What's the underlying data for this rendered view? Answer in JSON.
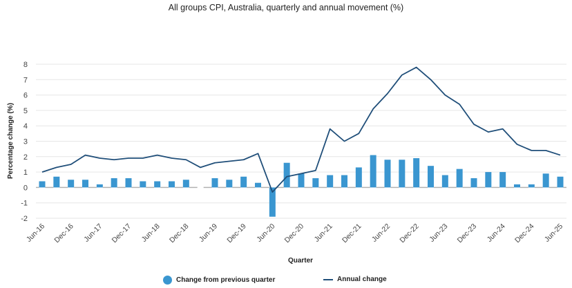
{
  "chart_data": {
    "type": "bar",
    "title": "All groups CPI, Australia, quarterly and annual movement (%)",
    "xlabel": "Quarter",
    "ylabel": "Percentage change (%)",
    "ylim": [
      -2,
      8
    ],
    "yticks": [
      -2,
      -1,
      0,
      1,
      2,
      3,
      4,
      5,
      6,
      7,
      8
    ],
    "grid": true,
    "legend_position": "bottom",
    "categories": [
      "Jun-16",
      "Sep-16",
      "Dec-16",
      "Mar-17",
      "Jun-17",
      "Sep-17",
      "Dec-17",
      "Mar-18",
      "Jun-18",
      "Sep-18",
      "Dec-18",
      "Mar-19",
      "Jun-19",
      "Sep-19",
      "Dec-19",
      "Mar-20",
      "Jun-20",
      "Sep-20",
      "Dec-20",
      "Mar-21",
      "Jun-21",
      "Sep-21",
      "Dec-21",
      "Mar-22",
      "Jun-22",
      "Sep-22",
      "Dec-22",
      "Mar-23",
      "Jun-23",
      "Sep-23",
      "Dec-23",
      "Mar-24",
      "Jun-24",
      "Sep-24",
      "Dec-24",
      "Mar-25",
      "Jun-25"
    ],
    "xtick_labels": [
      "Jun-16",
      "Dec-16",
      "Jun-17",
      "Dec-17",
      "Jun-18",
      "Dec-18",
      "Jun-19",
      "Dec-19",
      "Jun-20",
      "Dec-20",
      "Jun-21",
      "Dec-21",
      "Jun-22",
      "Dec-22",
      "Jun-23",
      "Dec-23",
      "Jun-24",
      "Dec-24",
      "Jun-25"
    ],
    "series": [
      {
        "name": "Change from previous quarter",
        "type": "bar",
        "color": "#3a96d0",
        "values": [
          0.4,
          0.7,
          0.5,
          0.5,
          0.2,
          0.6,
          0.6,
          0.4,
          0.4,
          0.4,
          0.5,
          0.0,
          0.6,
          0.5,
          0.7,
          0.3,
          -1.9,
          1.6,
          0.9,
          0.6,
          0.8,
          0.8,
          1.3,
          2.1,
          1.8,
          1.8,
          1.9,
          1.4,
          0.8,
          1.2,
          0.6,
          1.0,
          1.0,
          0.2,
          0.2,
          0.9,
          0.7
        ]
      },
      {
        "name": "Annual change",
        "type": "line",
        "color": "#1f4e79",
        "values": [
          1.0,
          1.3,
          1.5,
          2.1,
          1.9,
          1.8,
          1.9,
          1.9,
          2.1,
          1.9,
          1.8,
          1.3,
          1.6,
          1.7,
          1.8,
          2.2,
          -0.3,
          0.7,
          0.9,
          1.1,
          3.8,
          3.0,
          3.5,
          5.1,
          6.1,
          7.3,
          7.8,
          7.0,
          6.0,
          5.4,
          4.1,
          3.6,
          3.8,
          2.8,
          2.4,
          2.4,
          2.1
        ]
      }
    ]
  },
  "legend": {
    "bar_label": "Change from previous quarter",
    "line_label": "Annual change"
  }
}
